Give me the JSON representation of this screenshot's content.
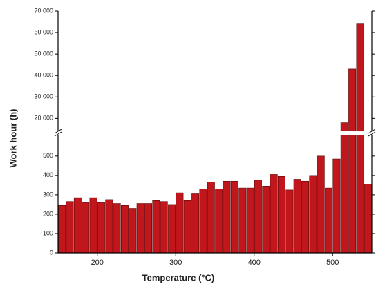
{
  "chart_data": {
    "type": "bar",
    "xlabel": "Temperature (°C)",
    "ylabel": "Work hour (h)",
    "x": [
      155,
      165,
      175,
      185,
      195,
      205,
      215,
      225,
      235,
      245,
      255,
      265,
      275,
      285,
      295,
      305,
      315,
      325,
      335,
      345,
      355,
      365,
      375,
      385,
      395,
      405,
      415,
      425,
      435,
      445,
      455,
      465,
      475,
      485,
      495,
      505,
      515,
      525,
      535,
      545
    ],
    "values": [
      245,
      265,
      285,
      260,
      285,
      260,
      275,
      255,
      245,
      230,
      255,
      255,
      270,
      265,
      250,
      310,
      270,
      305,
      330,
      365,
      330,
      370,
      370,
      335,
      335,
      375,
      345,
      405,
      395,
      325,
      380,
      370,
      400,
      500,
      335,
      485,
      18000,
      43000,
      64000,
      355
    ],
    "color": "#c0161c",
    "xlim": [
      150,
      550
    ],
    "xticks": [
      200,
      300,
      400,
      500
    ],
    "ylim": [
      0,
      610
    ],
    "yticks": [
      0,
      100,
      200,
      300,
      400,
      500
    ],
    "ylim_upper": [
      14000,
      70000
    ],
    "yticks_upper": [
      {
        "value": 20000,
        "label": "20 000"
      },
      {
        "value": 30000,
        "label": "30 000"
      },
      {
        "value": 40000,
        "label": "40 000"
      },
      {
        "value": 50000,
        "label": "50 000"
      },
      {
        "value": 60000,
        "label": "60 000"
      },
      {
        "value": 70000,
        "label": "70 000"
      }
    ],
    "axis_break": true
  }
}
